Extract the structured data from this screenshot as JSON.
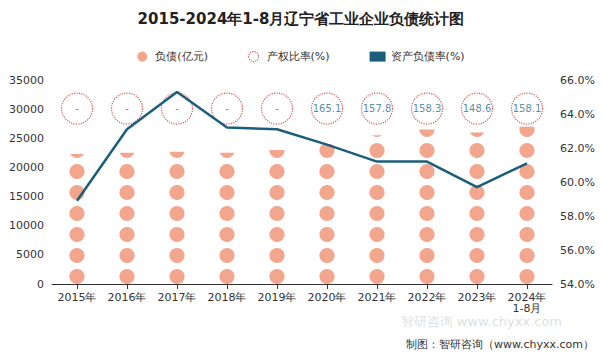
{
  "chart_data": {
    "type": "bar",
    "title": "2015-2024年1-8月辽宁省工业企业负债统计图",
    "source": "制图：智研咨询（www.chyxx.com）",
    "watermark": "智研咨询 www.chyxx.com",
    "categories": [
      "2015年",
      "2016年",
      "2017年",
      "2018年",
      "2019年",
      "2020年",
      "2021年",
      "2022年",
      "2023年",
      "2024年\n1-8月"
    ],
    "series": [
      {
        "name": "负债(亿元)",
        "type": "bar",
        "marker": "circle",
        "color": "#f3a68e",
        "values": [
          22300,
          22500,
          22700,
          22500,
          23000,
          24000,
          25500,
          26500,
          26000,
          27000
        ]
      },
      {
        "name": "产权比率(%)",
        "type": "scatter",
        "marker": "circle",
        "line_style": "dotted",
        "color": "#d62c2c",
        "values": [
          null,
          null,
          null,
          null,
          null,
          165.1,
          157.8,
          158.3,
          148.6,
          158.1
        ],
        "value_labels": [
          "-",
          "-",
          "-",
          "-",
          "-",
          "165.1",
          "157.8",
          "158.3",
          "148.6",
          "158.1"
        ]
      },
      {
        "name": "资产负债率(%)",
        "type": "line",
        "axis": "y2",
        "color": "#1b5e7b",
        "line_style": "solid",
        "values": [
          58.9,
          63.1,
          65.3,
          63.2,
          63.1,
          62.2,
          61.2,
          61.2,
          59.7,
          61.1
        ]
      }
    ],
    "ylim": [
      0,
      35000
    ],
    "yticks": [
      0,
      5000,
      10000,
      15000,
      20000,
      25000,
      30000,
      35000
    ],
    "y2lim": [
      54,
      66
    ],
    "y2ticks": [
      {
        "value": 54,
        "label": "54.0%"
      },
      {
        "value": 56,
        "label": "56.0%"
      },
      {
        "value": 58,
        "label": "58.0%"
      },
      {
        "value": 60,
        "label": "60.0%"
      },
      {
        "value": 62,
        "label": "62.0%"
      },
      {
        "value": 64,
        "label": "64.0%"
      },
      {
        "value": 66,
        "label": "66.0%"
      }
    ],
    "legend": "top",
    "grid": false
  }
}
